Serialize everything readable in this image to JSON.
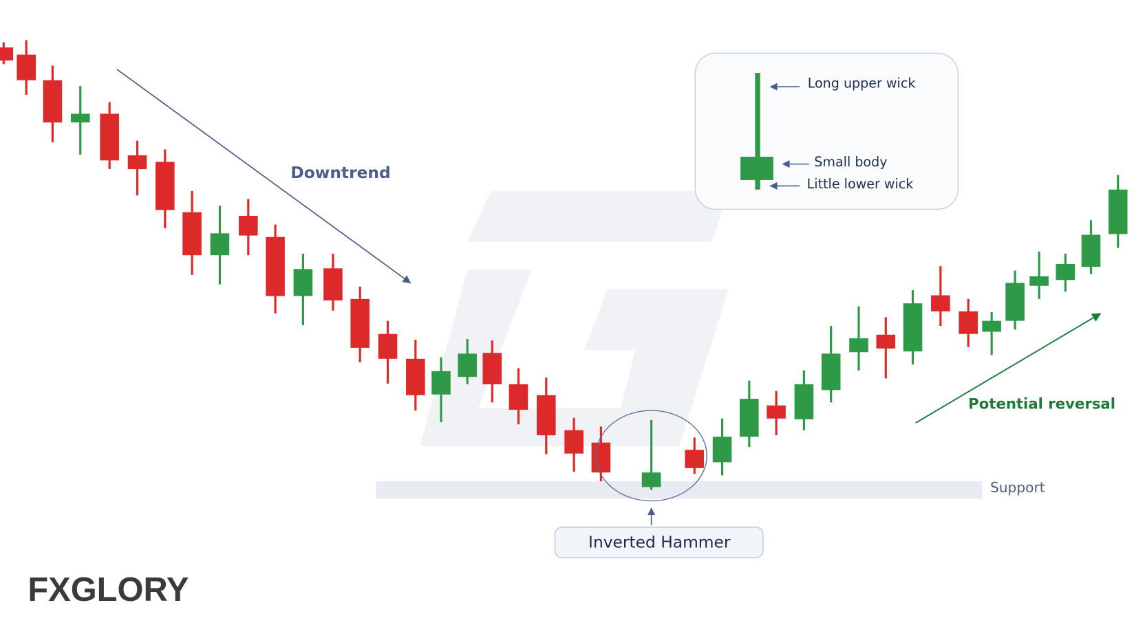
{
  "chart_data": {
    "type": "candlestick",
    "x": [
      0.5,
      3.6,
      7.2,
      11.0,
      15.0,
      18.8,
      22.6,
      26.3,
      30.1,
      34.0,
      37.7,
      41.5,
      45.6,
      49.3,
      53.1,
      56.9,
      60.4,
      64.0,
      67.4,
      71.0,
      74.8,
      78.6,
      82.3,
      89.2,
      95.1,
      98.9,
      102.6,
      106.3,
      110.1,
      113.8,
      117.6,
      121.3,
      125.0,
      128.8,
      132.6,
      135.8,
      139.0,
      142.3,
      145.9,
      149.4,
      153.1
    ],
    "open": [
      81.0,
      80.0,
      76.5,
      70.7,
      71.9,
      66.2,
      65.3,
      58.4,
      52.5,
      57.9,
      55.0,
      46.9,
      50.7,
      46.5,
      41.7,
      38.3,
      33.4,
      35.8,
      39.1,
      34.8,
      33.3,
      28.5,
      26.8,
      20.7,
      25.8,
      24.1,
      27.6,
      31.9,
      30.0,
      34.0,
      39.2,
      41.6,
      39.3,
      47.0,
      44.8,
      42.0,
      43.5,
      48.3,
      49.1,
      50.9,
      55.4
    ],
    "high": [
      81.7,
      82.0,
      78.5,
      75.7,
      73.5,
      68.2,
      67.0,
      61.3,
      59.3,
      60.2,
      56.7,
      52.7,
      52.7,
      48.2,
      43.5,
      40.9,
      38.5,
      41.0,
      40.8,
      37.0,
      35.7,
      30.2,
      29.0,
      29.9,
      27.5,
      30.1,
      35.3,
      33.9,
      36.7,
      42.8,
      45.5,
      44.0,
      47.7,
      51.0,
      46.5,
      44.7,
      50.4,
      53.0,
      52.7,
      57.3,
      63.5
    ],
    "low": [
      78.7,
      74.5,
      68.0,
      66.3,
      64.3,
      60.7,
      56.2,
      49.8,
      48.5,
      52.5,
      44.5,
      42.9,
      44.9,
      37.8,
      34.9,
      31.2,
      29.6,
      34.8,
      32.3,
      29.3,
      25.2,
      22.8,
      21.5,
      20.3,
      22.5,
      22.3,
      26.2,
      27.8,
      28.5,
      32.3,
      36.7,
      35.6,
      37.5,
      42.8,
      39.9,
      38.8,
      42.3,
      46.5,
      47.5,
      49.9,
      53.5
    ],
    "close": [
      79.2,
      76.5,
      70.7,
      71.9,
      65.5,
      64.3,
      58.7,
      52.5,
      55.5,
      55.2,
      46.9,
      50.6,
      46.3,
      39.8,
      38.3,
      33.3,
      36.6,
      39.0,
      34.8,
      31.3,
      27.8,
      25.3,
      22.7,
      22.7,
      23.3,
      27.6,
      32.8,
      30.1,
      34.8,
      39.0,
      41.1,
      39.7,
      45.9,
      44.8,
      41.7,
      43.5,
      48.7,
      49.6,
      51.3,
      55.3,
      61.5
    ],
    "up_color": "#2e9a47",
    "down_color": "#dc2a2a",
    "xlim": [
      0,
      156.8
    ],
    "ylim": [
      0,
      87.5
    ],
    "annotations": {
      "trend": "Downtrend",
      "reversal": "Potential reversal",
      "pattern": "Inverted Hammer",
      "support": {
        "label": "Support",
        "value": 20.3
      }
    },
    "inset": {
      "labels": [
        "Long upper wick",
        "Small body",
        "Little lower wick"
      ]
    }
  },
  "brand": "FXGLORY"
}
